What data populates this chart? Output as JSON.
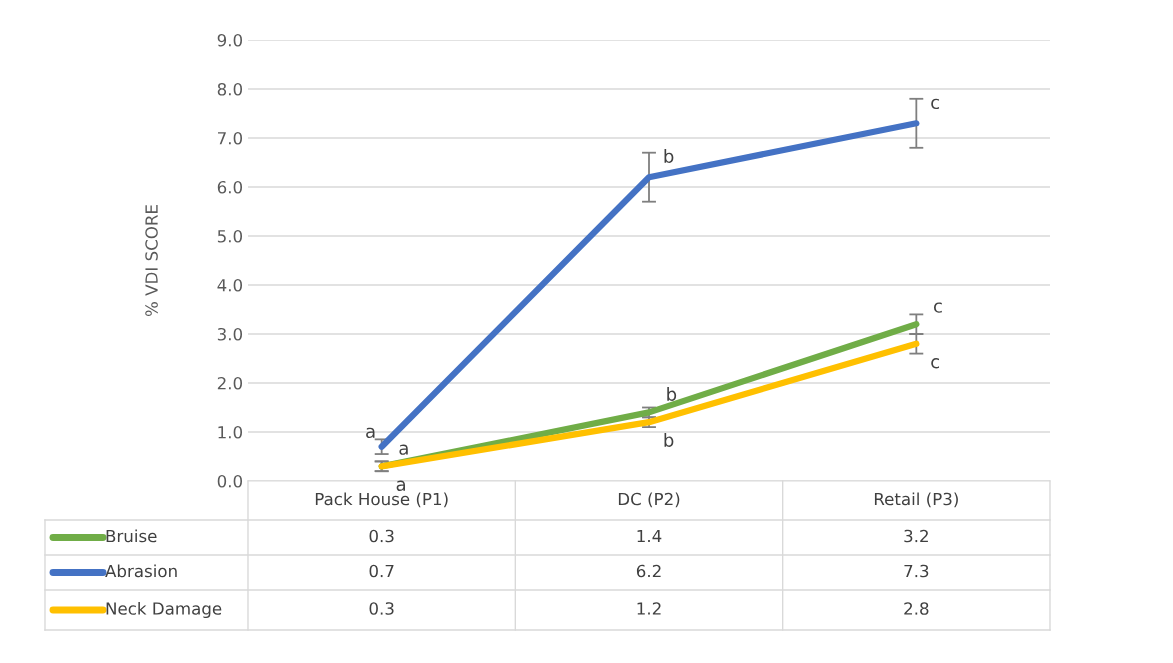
{
  "chart_data": {
    "type": "line",
    "ylabel": "% VDI SCORE",
    "categories": [
      "Pack House (P1)",
      "DC (P2)",
      "Retail (P3)"
    ],
    "series": [
      {
        "name": "Bruise",
        "color": "#70ad47",
        "values": [
          0.3,
          1.4,
          3.2
        ],
        "errors": [
          0.1,
          0.1,
          0.2
        ]
      },
      {
        "name": "Abrasion",
        "color": "#4472c4",
        "values": [
          0.7,
          6.2,
          7.3
        ],
        "errors": [
          0.15,
          0.5,
          0.5
        ]
      },
      {
        "name": "Neck Damage",
        "color": "#ffc000",
        "values": [
          0.3,
          1.2,
          2.8
        ],
        "errors": [
          0.1,
          0.1,
          0.2
        ]
      }
    ],
    "ylim": [
      0,
      9
    ],
    "yticks": [
      {
        "value": 0,
        "label": "0.0"
      },
      {
        "value": 1,
        "label": "1.0"
      },
      {
        "value": 2,
        "label": "2.0"
      },
      {
        "value": 3,
        "label": "3.0"
      },
      {
        "value": 4,
        "label": "4.0"
      },
      {
        "value": 5,
        "label": "5.0"
      },
      {
        "value": 6,
        "label": "6.0"
      },
      {
        "value": 7,
        "label": "7.0"
      },
      {
        "value": 8,
        "label": "8.0"
      },
      {
        "value": 9,
        "label": "9.0"
      }
    ],
    "grid": "y",
    "legend": "bottom",
    "data_labels": true,
    "marker": "none",
    "line_style": "solid",
    "annotations": [
      {
        "text": "a",
        "x": "Pack House (P1)",
        "y": 0.7
      },
      {
        "text": "a",
        "x": "Pack House (P1)",
        "y": 0.3
      },
      {
        "text": "a",
        "x": "Pack House (P1)",
        "y": 0.3
      },
      {
        "text": "b",
        "x": "DC (P2)",
        "y": 6.2
      },
      {
        "text": "b",
        "x": "DC (P2)",
        "y": 1.4
      },
      {
        "text": "b",
        "x": "DC (P2)",
        "y": 1.2
      },
      {
        "text": "c",
        "x": "Retail (P3)",
        "y": 7.3
      },
      {
        "text": "c",
        "x": "Retail (P3)",
        "y": 3.2
      },
      {
        "text": "c",
        "x": "Retail (P3)",
        "y": 2.8
      }
    ]
  }
}
